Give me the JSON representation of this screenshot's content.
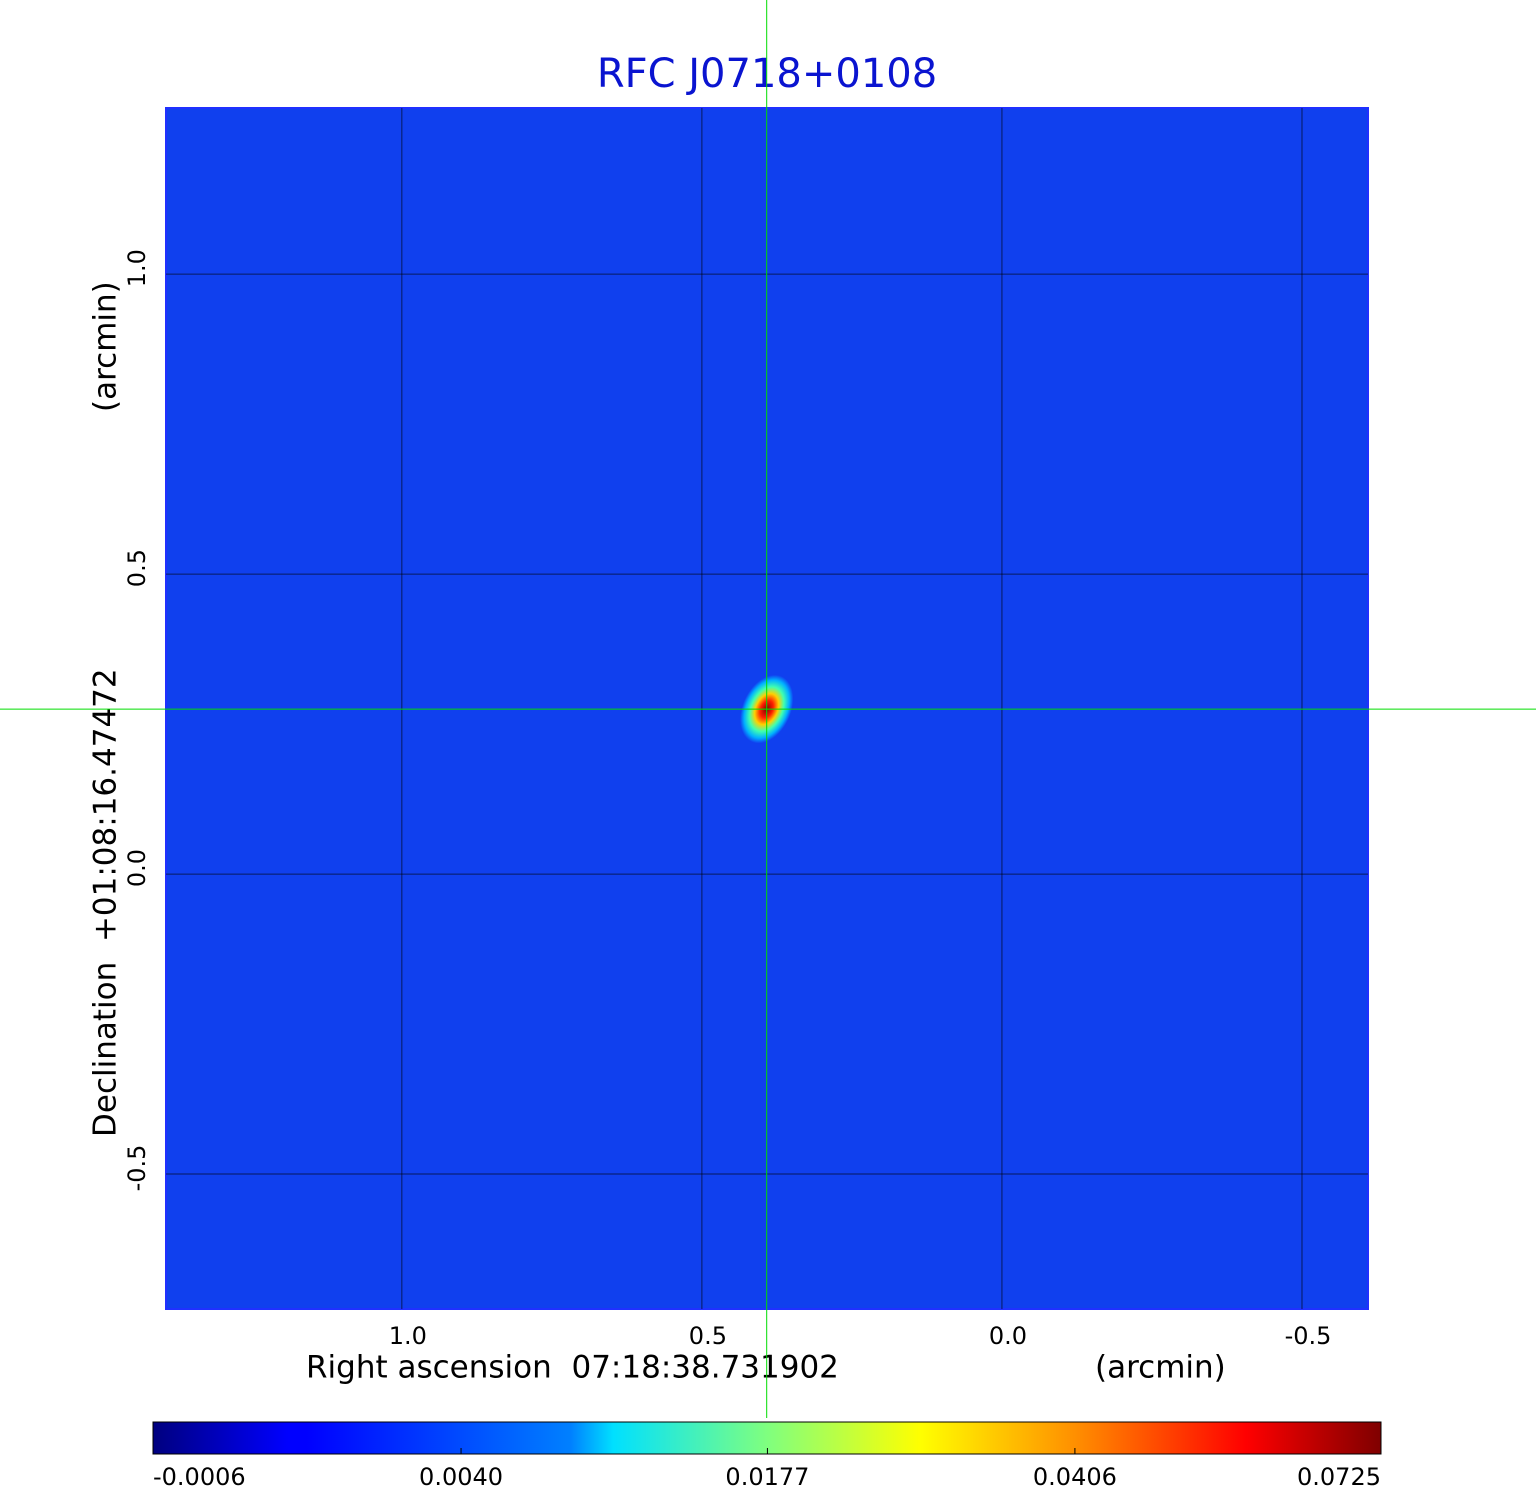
{
  "chart_data": {
    "type": "heatmap",
    "title": "RFC J0718+0108",
    "x_label": "Right ascension  07:18:38.731902",
    "x_unit": "(arcmin)",
    "y_label": "Declination  +01:08:16.47472",
    "y_unit": "(arcmin)",
    "xlim": [
      1.393,
      -0.61
    ],
    "ylim": [
      -0.725,
      1.277
    ],
    "xticks": [
      {
        "value": 1,
        "label": "1.0"
      },
      0.5,
      {
        "value": 0,
        "label": "0.0"
      },
      -0.5
    ],
    "yticks": [
      -0.5,
      {
        "value": 0,
        "label": "0.0"
      },
      0.5,
      {
        "value": 1,
        "label": "1.0"
      }
    ],
    "grid": true,
    "colormap": "jet",
    "color_scale": "sqrt",
    "clim": [
      -0.0006,
      0.0725
    ],
    "cticks": [
      -0.0006,
      {
        "value": 0.004,
        "label": "0.0040"
      },
      0.0177,
      0.0406,
      0.0725
    ],
    "source": {
      "x": 0.392,
      "y": 0.275,
      "peak": 0.0725
    },
    "crosshair_color": "#00dd00"
  }
}
